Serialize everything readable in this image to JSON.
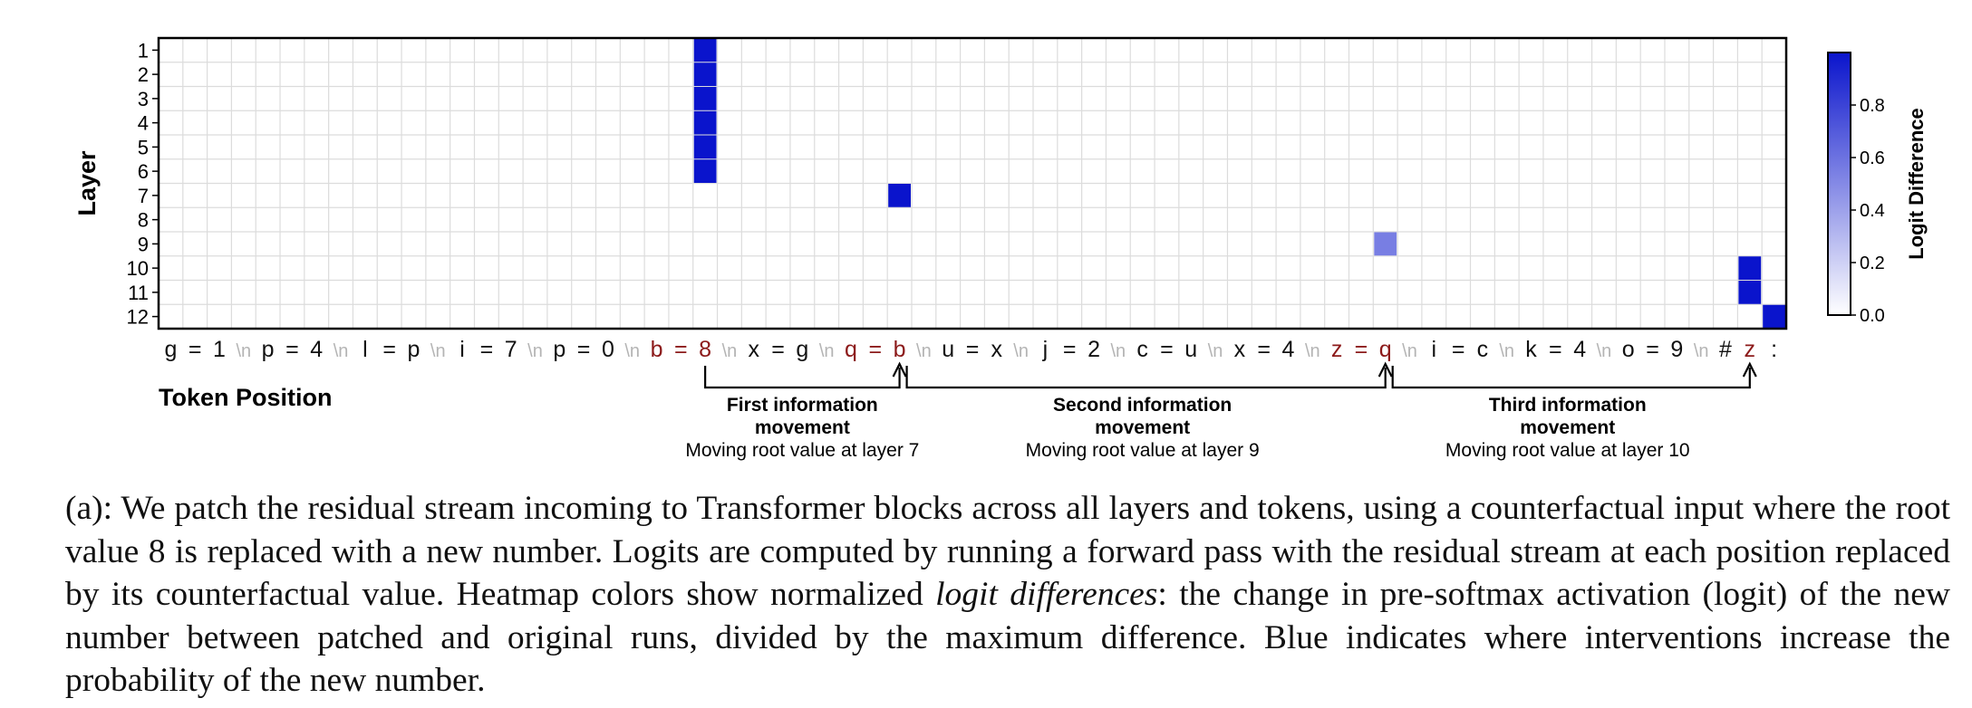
{
  "chart_data": {
    "type": "heatmap",
    "ylabel": "Layer",
    "xlabel": "Token Position",
    "y_categories": [
      "1",
      "2",
      "3",
      "4",
      "5",
      "6",
      "7",
      "8",
      "9",
      "10",
      "11",
      "12"
    ],
    "tokens": [
      "g",
      "=",
      "1",
      "\\n",
      "p",
      "=",
      "4",
      "\\n",
      "l",
      "=",
      "p",
      "\\n",
      "i",
      "=",
      "7",
      "\\n",
      "p",
      "=",
      "0",
      "\\n",
      "b",
      "=",
      "8",
      "\\n",
      "x",
      "=",
      "g",
      "\\n",
      "q",
      "=",
      "b",
      "\\n",
      "u",
      "=",
      "x",
      "\\n",
      "j",
      "=",
      "2",
      "\\n",
      "c",
      "=",
      "u",
      "\\n",
      "x",
      "=",
      "4",
      "\\n",
      "z",
      "=",
      "q",
      "\\n",
      "i",
      "=",
      "c",
      "\\n",
      "k",
      "=",
      "4",
      "\\n",
      "o",
      "=",
      "9",
      "\\n",
      "#",
      "z",
      ":"
    ],
    "highlight_tokens": [
      20,
      21,
      22,
      28,
      29,
      30,
      48,
      49,
      50,
      65
    ],
    "cells": [
      {
        "layer": 1,
        "token": 22,
        "value": 1.0
      },
      {
        "layer": 2,
        "token": 22,
        "value": 1.0
      },
      {
        "layer": 3,
        "token": 22,
        "value": 1.0
      },
      {
        "layer": 4,
        "token": 22,
        "value": 1.0
      },
      {
        "layer": 5,
        "token": 22,
        "value": 1.0
      },
      {
        "layer": 6,
        "token": 22,
        "value": 1.0
      },
      {
        "layer": 7,
        "token": 30,
        "value": 1.0
      },
      {
        "layer": 9,
        "token": 50,
        "value": 0.55
      },
      {
        "layer": 10,
        "token": 65,
        "value": 1.0
      },
      {
        "layer": 11,
        "token": 65,
        "value": 1.0
      },
      {
        "layer": 12,
        "token": 66,
        "value": 1.0
      }
    ],
    "colorbar": {
      "label": "Logit Difference",
      "min": 0.0,
      "max": 1.0,
      "ticks": [
        "0.0",
        "0.2",
        "0.4",
        "0.6",
        "0.8"
      ],
      "colors": [
        "#ffffff",
        "#0a14cc"
      ]
    },
    "annotations": [
      {
        "from": 22,
        "to": 30,
        "line1": "First information",
        "line2": "movement",
        "line3": "Moving root value at layer 7"
      },
      {
        "from": 30,
        "to": 50,
        "line1": "Second information",
        "line2": "movement",
        "line3": "Moving root value at layer 9"
      },
      {
        "from": 50,
        "to": 65,
        "line1": "Third information",
        "line2": "movement",
        "line3": "Moving root value at layer 10"
      }
    ]
  },
  "caption": {
    "prefix": "(a): We patch the residual stream incoming to Transformer blocks across all layers and tokens, using a counterfactual input where the root value 8 is replaced with a new number. Logits are computed by running a forward pass with the residual stream at each position replaced by its counterfactual value. Heatmap colors show normalized ",
    "emph": "logit differences",
    "suffix": ": the change in pre-softmax activation (logit) of the new number between patched and original runs, divided by the maximum difference. Blue indicates where interventions increase the probability of the new number."
  }
}
